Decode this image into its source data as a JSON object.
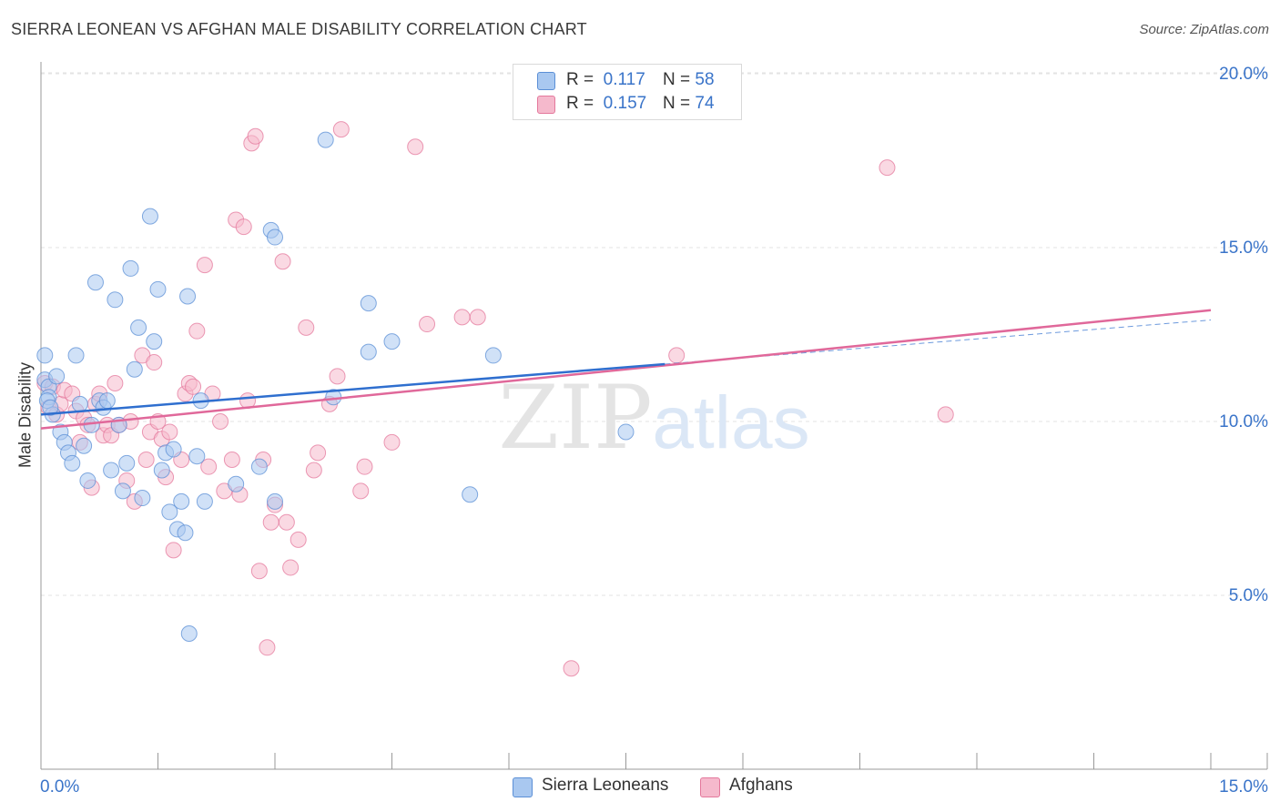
{
  "title": "SIERRA LEONEAN VS AFGHAN MALE DISABILITY CORRELATION CHART",
  "source": "Source: ZipAtlas.com",
  "watermark": {
    "zip": "ZIP",
    "atlas": "atlas"
  },
  "legend_top": [
    {
      "r_label": "R =",
      "r_value": "0.117",
      "n_label": "N =",
      "n_value": "58"
    },
    {
      "r_label": "R =",
      "r_value": "0.157",
      "n_label": "N =",
      "n_value": "74"
    }
  ],
  "legend_bottom": [
    "Sierra Leoneans",
    "Afghans"
  ],
  "colors": {
    "blue_fill": "#a9c8f0",
    "blue_stroke": "#5b8fd6",
    "blue_line": "#2f6fcf",
    "pink_fill": "#f5b9cc",
    "pink_stroke": "#e4789c",
    "pink_line": "#e0689a",
    "grid": "#e3e3e3",
    "axis_label": "#3a74c9"
  },
  "chart_data": {
    "type": "scatter",
    "title": "SIERRA LEONEAN VS AFGHAN MALE DISABILITY CORRELATION CHART",
    "xlabel": "",
    "ylabel": "Male Disability",
    "xlim": [
      0,
      15
    ],
    "ylim": [
      0,
      20.5
    ],
    "x_tick_labels": [
      "0.0%",
      "15.0%"
    ],
    "y_ticks": [
      5,
      10,
      15,
      20
    ],
    "y_tick_labels": [
      "5.0%",
      "10.0%",
      "15.0%",
      "20.0%"
    ],
    "series": [
      {
        "name": "Sierra Leoneans",
        "r": 0.117,
        "n": 58,
        "trend": {
          "x": [
            0,
            8.0
          ],
          "y": [
            10.2,
            11.65
          ]
        },
        "points": [
          [
            0.05,
            11.2
          ],
          [
            0.1,
            11.0
          ],
          [
            0.1,
            10.7
          ],
          [
            0.15,
            10.2
          ],
          [
            0.2,
            11.3
          ],
          [
            0.25,
            9.7
          ],
          [
            0.3,
            9.4
          ],
          [
            0.35,
            9.1
          ],
          [
            0.4,
            8.8
          ],
          [
            0.45,
            11.9
          ],
          [
            0.5,
            10.5
          ],
          [
            0.55,
            9.3
          ],
          [
            0.6,
            8.3
          ],
          [
            0.65,
            9.9
          ],
          [
            0.7,
            14.0
          ],
          [
            0.75,
            10.6
          ],
          [
            0.8,
            10.4
          ],
          [
            0.85,
            10.6
          ],
          [
            0.9,
            8.6
          ],
          [
            0.95,
            13.5
          ],
          [
            1.0,
            9.9
          ],
          [
            1.05,
            8.0
          ],
          [
            1.1,
            8.8
          ],
          [
            1.15,
            14.4
          ],
          [
            1.2,
            11.5
          ],
          [
            1.25,
            12.7
          ],
          [
            1.3,
            7.8
          ],
          [
            1.4,
            15.9
          ],
          [
            1.45,
            12.3
          ],
          [
            1.5,
            13.8
          ],
          [
            1.55,
            8.6
          ],
          [
            1.6,
            9.1
          ],
          [
            1.65,
            7.4
          ],
          [
            1.7,
            9.2
          ],
          [
            1.75,
            6.9
          ],
          [
            1.8,
            7.7
          ],
          [
            1.85,
            6.8
          ],
          [
            1.9,
            3.9
          ],
          [
            1.88,
            13.6
          ],
          [
            2.0,
            9.0
          ],
          [
            2.05,
            10.6
          ],
          [
            2.1,
            7.7
          ],
          [
            2.5,
            8.2
          ],
          [
            2.8,
            8.7
          ],
          [
            2.95,
            15.5
          ],
          [
            3.0,
            7.7
          ],
          [
            3.0,
            15.3
          ],
          [
            3.65,
            18.1
          ],
          [
            3.75,
            10.7
          ],
          [
            4.2,
            13.4
          ],
          [
            4.2,
            12.0
          ],
          [
            4.5,
            12.3
          ],
          [
            5.5,
            7.9
          ],
          [
            5.8,
            11.9
          ],
          [
            7.5,
            9.7
          ],
          [
            0.05,
            11.9
          ],
          [
            0.08,
            10.6
          ],
          [
            0.12,
            10.4
          ]
        ]
      },
      {
        "name": "Afghans",
        "r": 0.157,
        "n": 74,
        "trend": {
          "x": [
            0,
            15
          ],
          "y": [
            9.8,
            13.2
          ]
        },
        "points": [
          [
            0.05,
            11.1
          ],
          [
            0.1,
            10.4
          ],
          [
            0.15,
            11.0
          ],
          [
            0.2,
            10.2
          ],
          [
            0.25,
            10.5
          ],
          [
            0.3,
            10.9
          ],
          [
            0.4,
            10.8
          ],
          [
            0.45,
            10.3
          ],
          [
            0.5,
            9.4
          ],
          [
            0.55,
            10.1
          ],
          [
            0.6,
            9.9
          ],
          [
            0.65,
            8.1
          ],
          [
            0.7,
            10.5
          ],
          [
            0.75,
            10.8
          ],
          [
            0.8,
            9.6
          ],
          [
            0.85,
            9.9
          ],
          [
            0.9,
            9.6
          ],
          [
            0.95,
            11.1
          ],
          [
            1.0,
            9.9
          ],
          [
            1.1,
            8.3
          ],
          [
            1.15,
            10.0
          ],
          [
            1.2,
            7.7
          ],
          [
            1.3,
            11.9
          ],
          [
            1.35,
            8.9
          ],
          [
            1.4,
            9.7
          ],
          [
            1.45,
            11.7
          ],
          [
            1.5,
            10.0
          ],
          [
            1.55,
            9.5
          ],
          [
            1.6,
            8.4
          ],
          [
            1.65,
            9.7
          ],
          [
            1.7,
            6.3
          ],
          [
            1.8,
            8.9
          ],
          [
            1.85,
            10.8
          ],
          [
            1.9,
            11.1
          ],
          [
            1.95,
            11.0
          ],
          [
            2.0,
            12.6
          ],
          [
            2.1,
            14.5
          ],
          [
            2.15,
            8.7
          ],
          [
            2.2,
            10.8
          ],
          [
            2.3,
            10.0
          ],
          [
            2.35,
            8.0
          ],
          [
            2.45,
            8.9
          ],
          [
            2.5,
            15.8
          ],
          [
            2.55,
            7.9
          ],
          [
            2.6,
            15.6
          ],
          [
            2.65,
            10.6
          ],
          [
            2.7,
            18.0
          ],
          [
            2.75,
            18.2
          ],
          [
            2.8,
            5.7
          ],
          [
            2.85,
            8.9
          ],
          [
            2.9,
            3.5
          ],
          [
            2.95,
            7.1
          ],
          [
            3.0,
            7.6
          ],
          [
            3.1,
            14.6
          ],
          [
            3.15,
            7.1
          ],
          [
            3.2,
            5.8
          ],
          [
            3.3,
            6.6
          ],
          [
            3.4,
            12.7
          ],
          [
            3.5,
            8.6
          ],
          [
            3.55,
            9.1
          ],
          [
            3.7,
            10.5
          ],
          [
            3.8,
            11.3
          ],
          [
            3.85,
            18.4
          ],
          [
            4.1,
            8.0
          ],
          [
            4.15,
            8.7
          ],
          [
            4.5,
            9.4
          ],
          [
            4.8,
            17.9
          ],
          [
            4.95,
            12.8
          ],
          [
            5.4,
            13.0
          ],
          [
            5.6,
            13.0
          ],
          [
            6.8,
            2.9
          ],
          [
            8.15,
            11.9
          ],
          [
            10.85,
            17.3
          ],
          [
            11.6,
            10.2
          ]
        ]
      }
    ]
  }
}
